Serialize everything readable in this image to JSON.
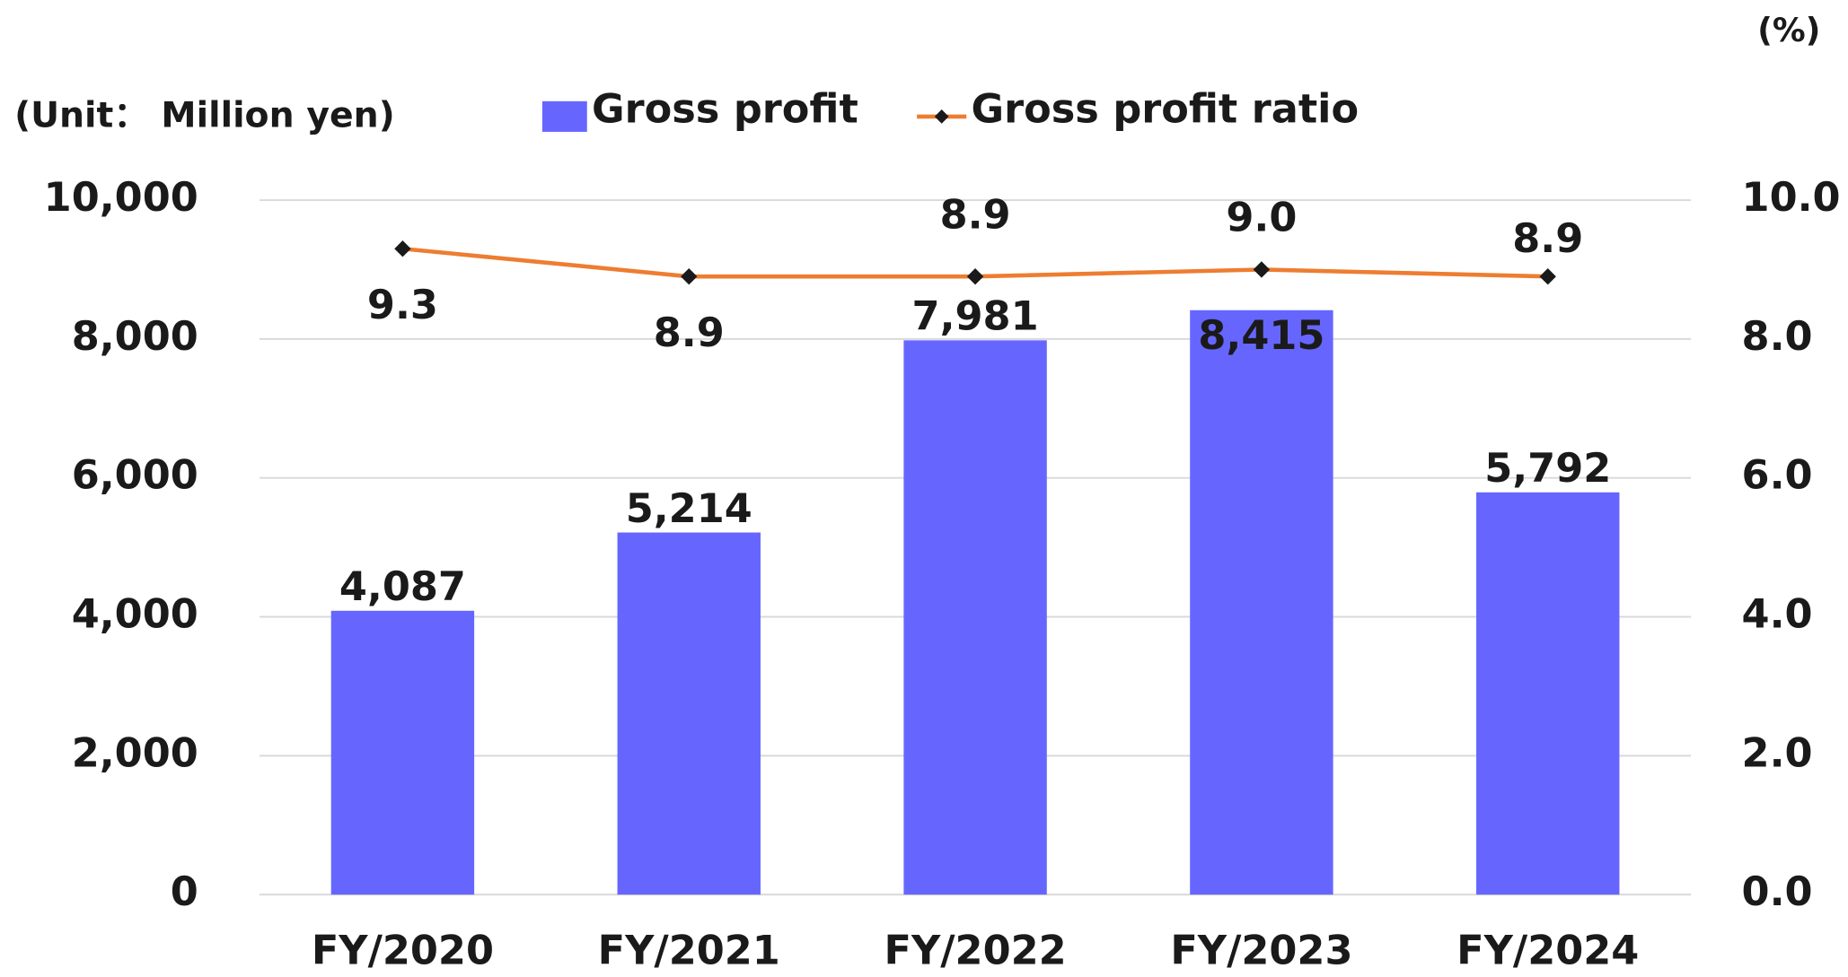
{
  "chart_data": {
    "type": "bar",
    "unit_label": "(Unit： Million yen)",
    "y2_unit_label": "(%)",
    "categories": [
      "FY/2020",
      "FY/2021",
      "FY/2022",
      "FY/2023",
      "FY/2024"
    ],
    "series": [
      {
        "name": "Gross profit",
        "color": "#6666ff",
        "type": "bar",
        "values": [
          4087,
          5214,
          7981,
          8415,
          5792
        ],
        "value_labels": [
          "4,087",
          "5,214",
          "7,981",
          "8,415",
          "5,792"
        ]
      },
      {
        "name": "Gross profit ratio",
        "color": "#ed7d31",
        "marker_color": "#1a1a1a",
        "type": "line",
        "axis": "y2",
        "values": [
          9.3,
          8.9,
          8.9,
          9.0,
          8.9
        ],
        "value_labels": [
          "9.3",
          "8.9",
          "8.9",
          "9.0",
          "8.9"
        ]
      }
    ],
    "ylim": [
      0,
      10000
    ],
    "yticks": [
      0,
      {
        "value": 2000,
        "label": "2,000"
      },
      {
        "value": 4000,
        "label": "4,000"
      },
      {
        "value": 6000,
        "label": "6,000"
      },
      {
        "value": 8000,
        "label": "8,000"
      },
      {
        "value": 10000,
        "label": "10,000"
      }
    ],
    "y2lim": [
      0,
      10
    ],
    "y2ticks": [
      {
        "value": 0,
        "label": "0.0"
      },
      {
        "value": 2,
        "label": "2.0"
      },
      {
        "value": 4,
        "label": "4.0"
      },
      {
        "value": 6,
        "label": "6.0"
      },
      {
        "value": 8,
        "label": "8.0"
      },
      {
        "value": 10,
        "label": "10.0"
      }
    ],
    "grid": true
  }
}
